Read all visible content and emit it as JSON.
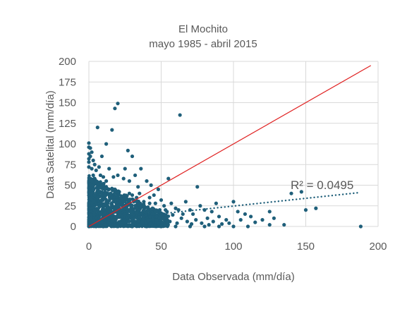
{
  "chart_data": {
    "type": "scatter",
    "title": "El Mochito",
    "subtitle": "mayo 1985 -  abril 2015",
    "xlabel": "Data Observada (mm/día)",
    "ylabel": "Data Satelital (mm/día)",
    "xlim": [
      0,
      200
    ],
    "ylim": [
      0,
      200
    ],
    "xticks": [
      "0",
      "50",
      "100",
      "150",
      "200"
    ],
    "yticks": [
      "0",
      "25",
      "50",
      "75",
      "100",
      "125",
      "150",
      "175",
      "200"
    ],
    "grid": true,
    "series": [
      {
        "color": "#1f5f7a",
        "points": [
          [
            0,
            101
          ],
          [
            0,
            96
          ],
          [
            0,
            88
          ],
          [
            0,
            82
          ],
          [
            0,
            78
          ],
          [
            1,
            95
          ],
          [
            1,
            85
          ],
          [
            2,
            90
          ],
          [
            2,
            70
          ],
          [
            0,
            72
          ],
          [
            3,
            80
          ],
          [
            3,
            62
          ],
          [
            4,
            75
          ],
          [
            4,
            58
          ],
          [
            5,
            68
          ],
          [
            5,
            55
          ],
          [
            6,
            120
          ],
          [
            7,
            72
          ],
          [
            8,
            62
          ],
          [
            8,
            48
          ],
          [
            9,
            85
          ],
          [
            10,
            60
          ],
          [
            10,
            50
          ],
          [
            12,
            100
          ],
          [
            12,
            55
          ],
          [
            14,
            70
          ],
          [
            15,
            40
          ],
          [
            16,
            117
          ],
          [
            17,
            60
          ],
          [
            18,
            143
          ],
          [
            18,
            45
          ],
          [
            20,
            149
          ],
          [
            20,
            62
          ],
          [
            22,
            35
          ],
          [
            24,
            58
          ],
          [
            25,
            70
          ],
          [
            27,
            92
          ],
          [
            28,
            55
          ],
          [
            30,
            85
          ],
          [
            30,
            38
          ],
          [
            32,
            62
          ],
          [
            34,
            48
          ],
          [
            35,
            40
          ],
          [
            36,
            70
          ],
          [
            38,
            30
          ],
          [
            40,
            55
          ],
          [
            42,
            35
          ],
          [
            43,
            50
          ],
          [
            45,
            38
          ],
          [
            46,
            28
          ],
          [
            48,
            45
          ],
          [
            50,
            32
          ],
          [
            52,
            25
          ],
          [
            54,
            18
          ],
          [
            55,
            58
          ],
          [
            57,
            28
          ],
          [
            60,
            22
          ],
          [
            62,
            20
          ],
          [
            63,
            135
          ],
          [
            65,
            15
          ],
          [
            67,
            30
          ],
          [
            70,
            20
          ],
          [
            72,
            15
          ],
          [
            75,
            48
          ],
          [
            77,
            25
          ],
          [
            80,
            20
          ],
          [
            82,
            10
          ],
          [
            85,
            18
          ],
          [
            88,
            28
          ],
          [
            90,
            12
          ],
          [
            95,
            8
          ],
          [
            100,
            30
          ],
          [
            103,
            18
          ],
          [
            105,
            8
          ],
          [
            108,
            15
          ],
          [
            112,
            12
          ],
          [
            115,
            5
          ],
          [
            120,
            8
          ],
          [
            125,
            2
          ],
          [
            125,
            18
          ],
          [
            128,
            10
          ],
          [
            135,
            2
          ],
          [
            140,
            40
          ],
          [
            147,
            42
          ],
          [
            150,
            20
          ],
          [
            157,
            22
          ],
          [
            188,
            0
          ],
          [
            110,
            0
          ],
          [
            100,
            0
          ],
          [
            90,
            0
          ],
          [
            80,
            0
          ],
          [
            70,
            0
          ],
          [
            60,
            0
          ],
          [
            50,
            0
          ],
          [
            40,
            0
          ],
          [
            30,
            0
          ],
          [
            20,
            0
          ],
          [
            10,
            0
          ],
          [
            5,
            0
          ],
          [
            0,
            0
          ],
          [
            2,
            40
          ],
          [
            3,
            30
          ],
          [
            4,
            20
          ],
          [
            5,
            10
          ],
          [
            6,
            35
          ],
          [
            7,
            25
          ],
          [
            8,
            15
          ],
          [
            9,
            5
          ],
          [
            11,
            38
          ],
          [
            13,
            28
          ],
          [
            15,
            18
          ],
          [
            17,
            8
          ],
          [
            19,
            32
          ],
          [
            21,
            22
          ],
          [
            23,
            12
          ],
          [
            25,
            4
          ],
          [
            27,
            28
          ],
          [
            29,
            18
          ],
          [
            31,
            10
          ],
          [
            33,
            22
          ],
          [
            35,
            12
          ],
          [
            37,
            5
          ],
          [
            39,
            18
          ],
          [
            41,
            8
          ],
          [
            44,
            15
          ],
          [
            47,
            8
          ],
          [
            49,
            20
          ],
          [
            53,
            10
          ],
          [
            56,
            6
          ],
          [
            58,
            14
          ],
          [
            61,
            4
          ],
          [
            64,
            10
          ],
          [
            68,
            6
          ],
          [
            71,
            3
          ],
          [
            74,
            8
          ],
          [
            78,
            4
          ],
          [
            83,
            2
          ],
          [
            86,
            6
          ],
          [
            92,
            3
          ],
          [
            97,
            4
          ],
          [
            1,
            50
          ],
          [
            2,
            55
          ],
          [
            3,
            45
          ],
          [
            4,
            38
          ],
          [
            6,
            48
          ],
          [
            7,
            42
          ],
          [
            9,
            38
          ],
          [
            11,
            45
          ],
          [
            13,
            40
          ],
          [
            16,
            35
          ],
          [
            18,
            30
          ],
          [
            21,
            42
          ],
          [
            24,
            30
          ],
          [
            26,
            25
          ],
          [
            28,
            40
          ],
          [
            31,
            30
          ],
          [
            33,
            35
          ],
          [
            36,
            25
          ],
          [
            38,
            20
          ],
          [
            42,
            28
          ],
          [
            44,
            22
          ],
          [
            46,
            18
          ],
          [
            51,
            15
          ],
          [
            53,
            20
          ]
        ]
      },
      {
        "name": "R² = 0.0495",
        "type": "trendline",
        "color": "#1f5f7a",
        "x": [
          0,
          187
        ],
        "y": [
          6,
          41
        ]
      },
      {
        "type": "line",
        "color": "#e02020",
        "x": [
          0,
          200
        ],
        "y": [
          0,
          200
        ]
      }
    ],
    "annotation": "R² = 0.0495"
  }
}
